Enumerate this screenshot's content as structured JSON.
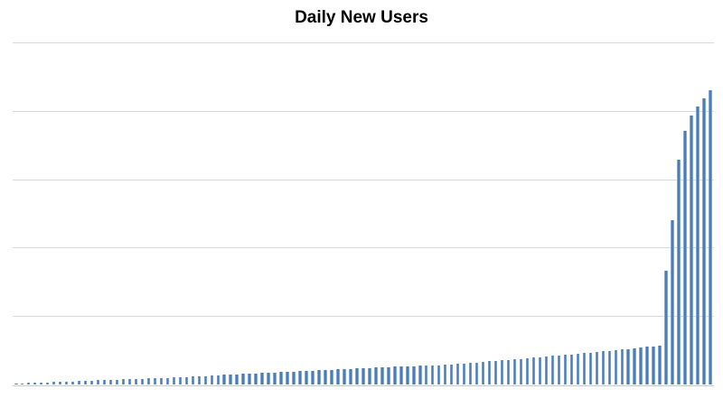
{
  "chart_data": {
    "type": "bar",
    "title": "Daily New Users",
    "xlabel": "",
    "ylabel": "",
    "n_bars": 111,
    "x_axis_labels_visible": false,
    "y_axis_labels_visible": false,
    "ylim": [
      0,
      2500
    ],
    "gridline_interval": 500,
    "grid": true,
    "legend_position": "none",
    "values": [
      7,
      9,
      11,
      12,
      14,
      16,
      18,
      19,
      21,
      23,
      25,
      26,
      28,
      30,
      32,
      33,
      35,
      37,
      39,
      40,
      42,
      44,
      46,
      47,
      49,
      51,
      53,
      55,
      58,
      60,
      62,
      65,
      67,
      70,
      72,
      74,
      77,
      79,
      81,
      84,
      86,
      88,
      90,
      93,
      95,
      97,
      99,
      101,
      103,
      106,
      108,
      110,
      112,
      114,
      117,
      119,
      121,
      123,
      125,
      127,
      129,
      131,
      132,
      134,
      136,
      138,
      140,
      141,
      143,
      145,
      149,
      153,
      157,
      161,
      165,
      169,
      172,
      176,
      180,
      184,
      188,
      192,
      196,
      200,
      204,
      208,
      213,
      217,
      221,
      225,
      230,
      234,
      238,
      242,
      247,
      251,
      255,
      260,
      264,
      269,
      274,
      279,
      284,
      834,
      1201,
      1643,
      1854,
      1967,
      2033,
      2092,
      2152
    ]
  },
  "colors": {
    "bar": "#4472C4",
    "bar_edge_highlight": "#B3C7E4",
    "gridline": "#D8D8D8",
    "axis_line": "#C9C9C9",
    "title_text": "#000000",
    "background": "#FFFFFF"
  }
}
